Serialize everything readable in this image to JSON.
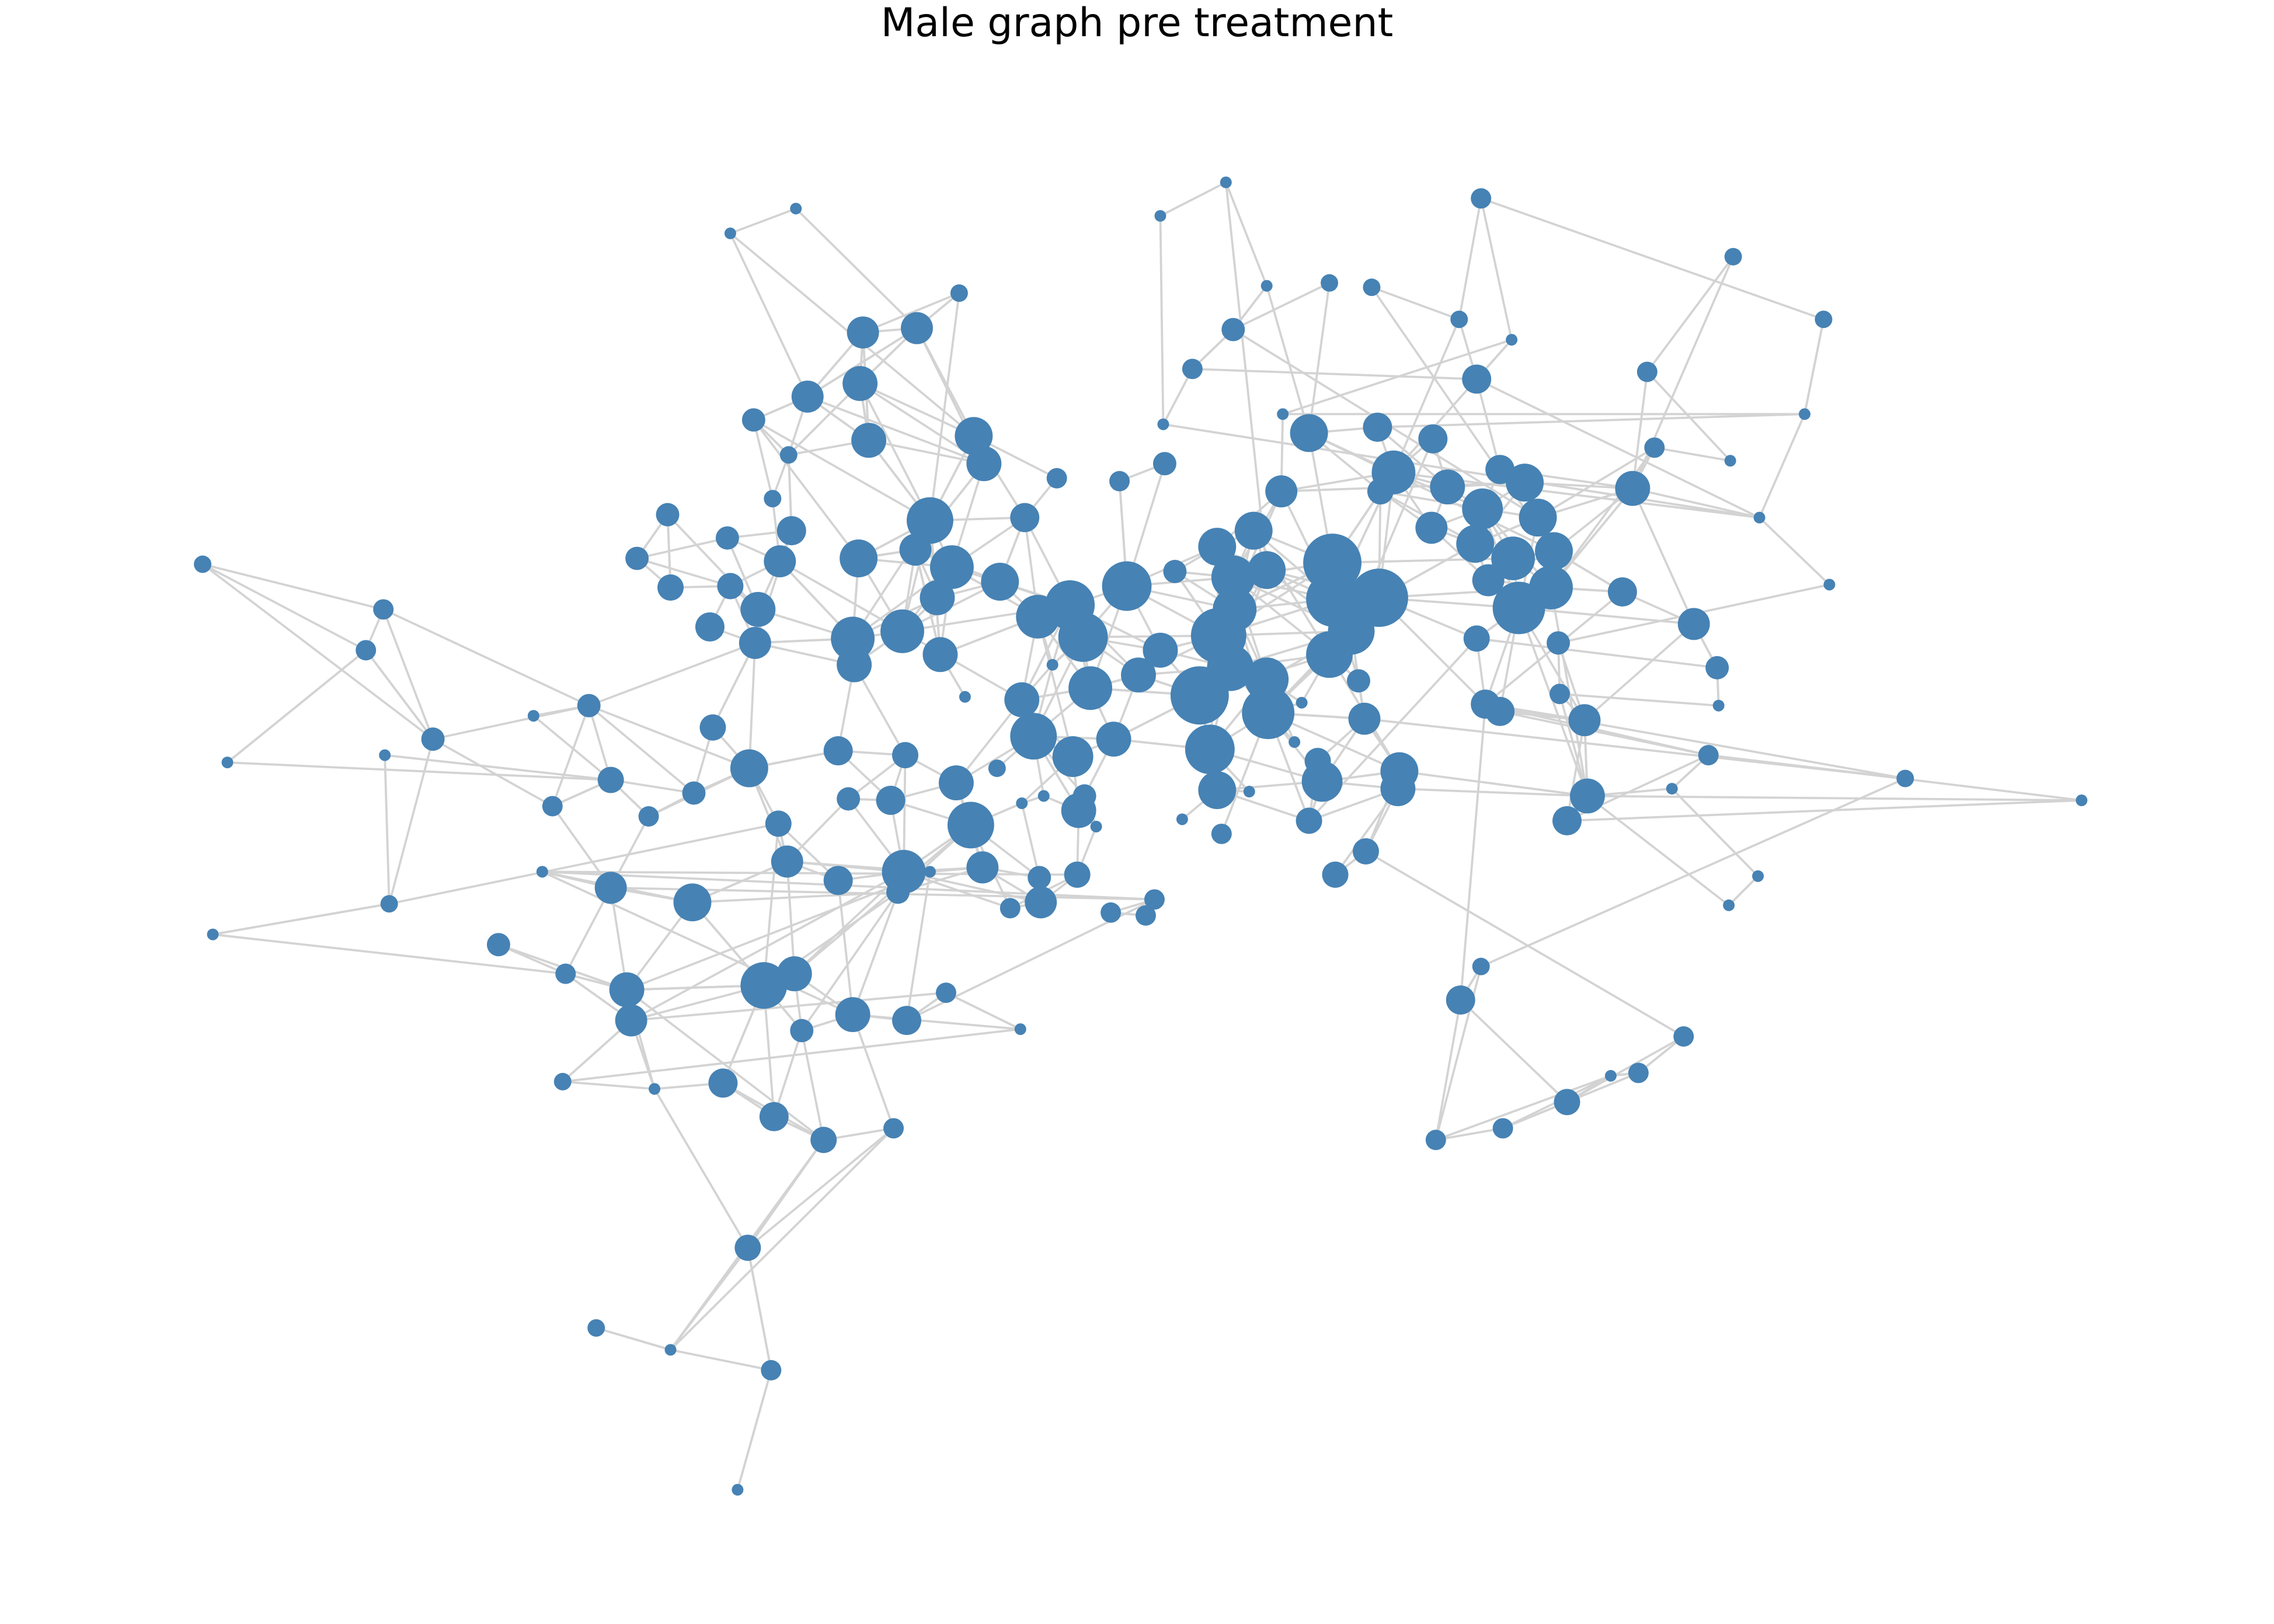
{
  "title": "Male graph pre treatment",
  "colors": {
    "node": "#4682b4",
    "edge": "#d3d3d3",
    "background": "#ffffff"
  },
  "graph": {
    "node_count": 205
  }
}
